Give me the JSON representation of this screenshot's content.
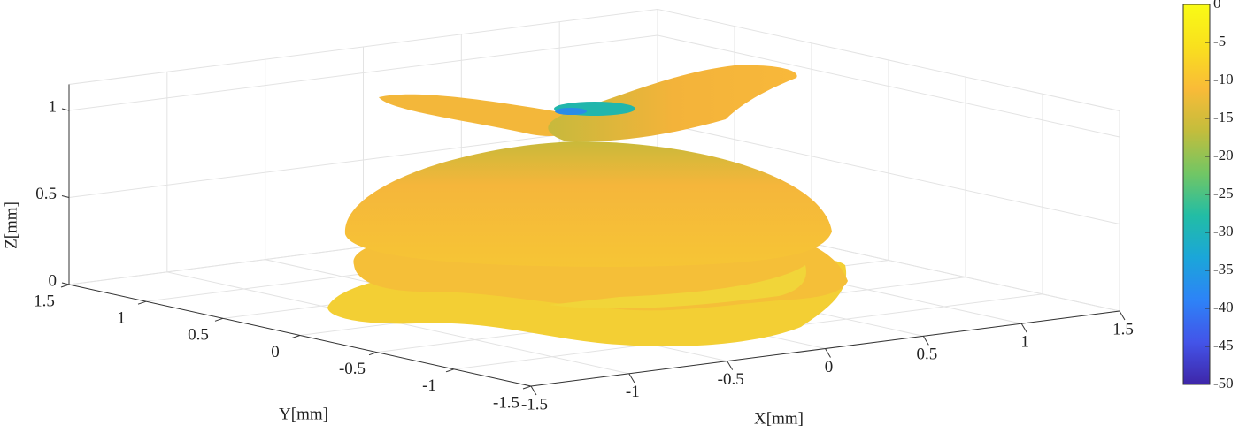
{
  "chart_data": {
    "type": "surface3d",
    "xlabel": "X[mm]",
    "ylabel": "Y[mm]",
    "zlabel": "Z[mm]",
    "xlim": [
      -1.5,
      1.5
    ],
    "xticks": [
      -1.5,
      -1,
      -0.5,
      0,
      0.5,
      1,
      1.5
    ],
    "ylim": [
      -1.5,
      1.5
    ],
    "yticks": [
      -1.5,
      -1,
      -0.5,
      0,
      0.5,
      1,
      1.5
    ],
    "zlim": [
      0,
      1.15
    ],
    "zticks": [
      0,
      0.5,
      1
    ],
    "grid": true,
    "colorbar": {
      "lim": [
        -50,
        0
      ],
      "ticks": [
        0,
        -5,
        -10,
        -15,
        -20,
        -25,
        -30,
        -35,
        -40,
        -45,
        -50
      ],
      "colormap": [
        "#3e26a8",
        "#4354e9",
        "#2d83f7",
        "#1ba6d9",
        "#22bda5",
        "#72c664",
        "#c3bd3c",
        "#f9bb38",
        "#f9e01e",
        "#f9fb15"
      ]
    }
  }
}
